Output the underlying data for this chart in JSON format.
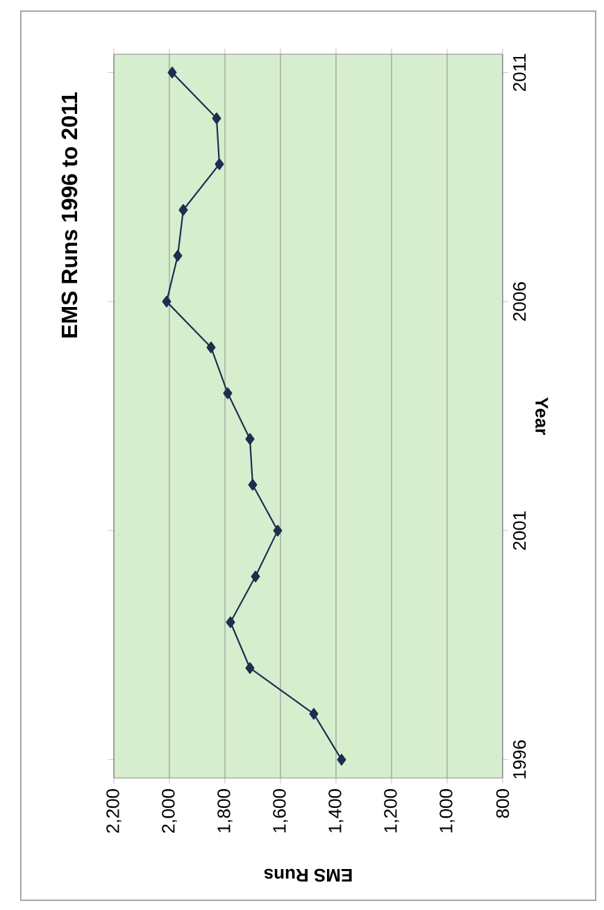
{
  "chart_data": {
    "type": "line",
    "title": "EMS Runs 1996 to 2011",
    "xlabel": "EMS Runs",
    "ylabel": "Year",
    "series": [
      {
        "color": "#1c2f4f",
        "x": [
          1380,
          1480,
          1710,
          1780,
          1690,
          1610,
          1700,
          1710,
          1790,
          1850,
          2010,
          1970,
          1950,
          1820,
          1830,
          1990
        ],
        "values": [
          1996,
          1997,
          1998,
          1999,
          2000,
          2001,
          2002,
          2003,
          2004,
          2005,
          2006,
          2007,
          2008,
          2009,
          2010,
          2011
        ]
      }
    ],
    "ylim": [
      1995.6,
      2011.4
    ],
    "yticks": [
      1996,
      2001,
      2006,
      2011
    ],
    "xlim": [
      2200,
      800
    ],
    "xticks": [
      {
        "value": 2200,
        "label": "2,200"
      },
      {
        "value": 2000,
        "label": "2,000"
      },
      {
        "value": 1800,
        "label": "1,800"
      },
      {
        "value": 1600,
        "label": "1,600"
      },
      {
        "value": 1400,
        "label": "1,400"
      },
      {
        "value": 1200,
        "label": "1,200"
      },
      {
        "value": 1000,
        "label": "1,000"
      },
      {
        "value": 800,
        "label": "800"
      }
    ],
    "grid": "x",
    "marker": "diamond",
    "line_style": "solid"
  }
}
